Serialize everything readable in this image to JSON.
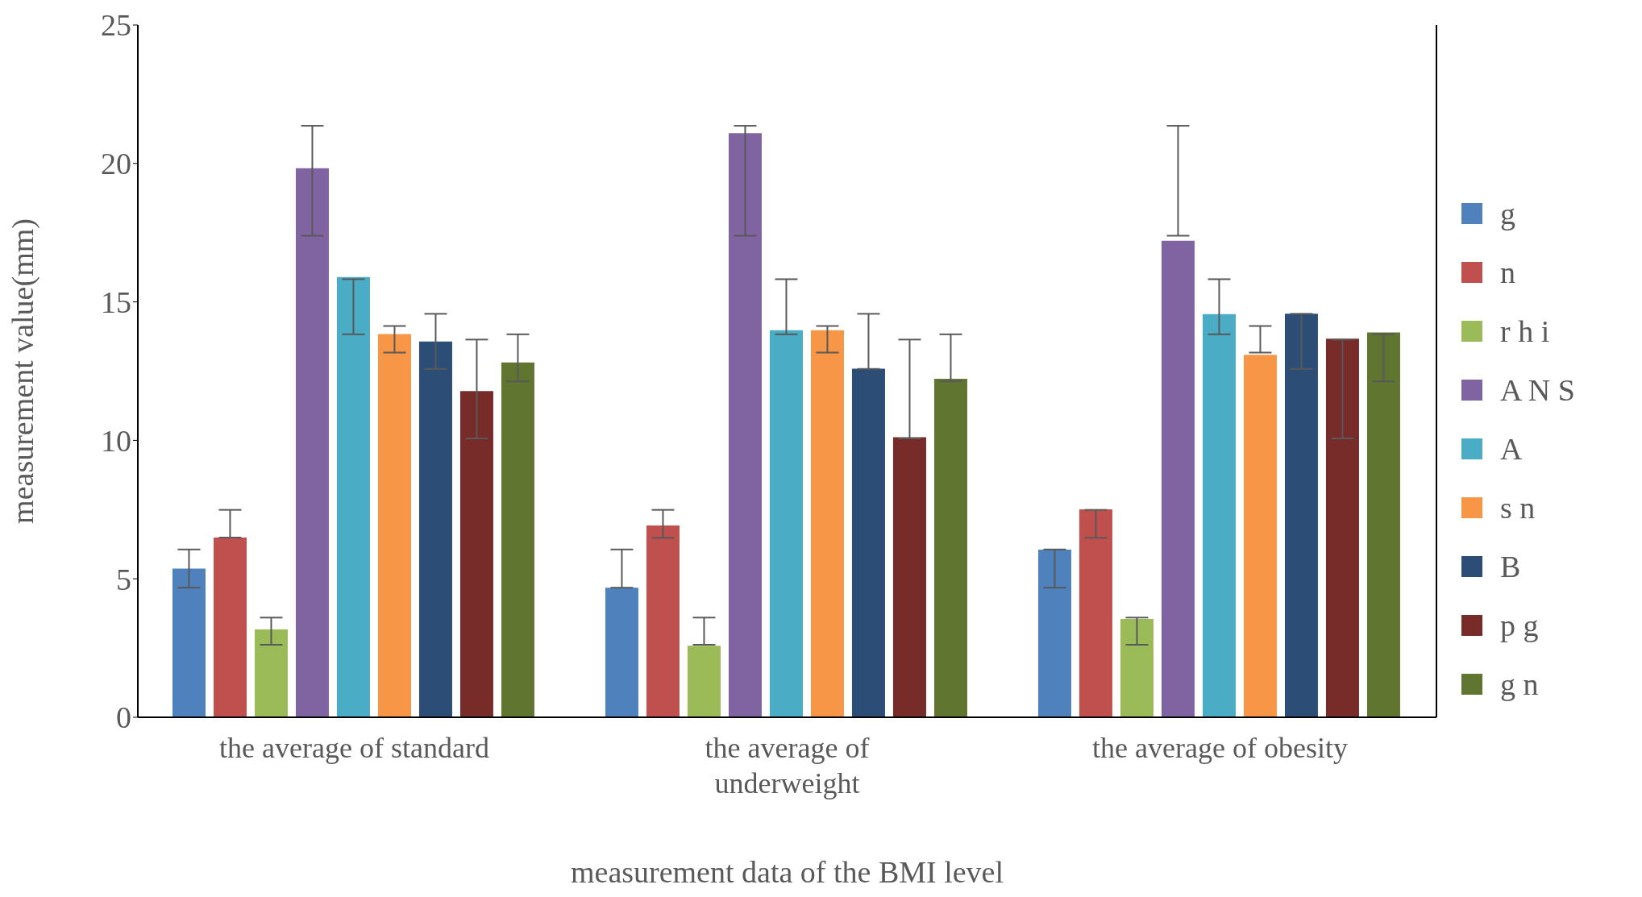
{
  "chart_data": {
    "type": "bar",
    "xlabel": "measurement data of the BMI level",
    "ylabel": "measurement value(mm)",
    "categories": [
      "the average of standard",
      "the average of underweight",
      "the average of obesity"
    ],
    "ylim": [
      0,
      25
    ],
    "yticks": [
      0,
      5,
      10,
      15,
      20,
      25
    ],
    "grid": false,
    "legend": "right",
    "series": [
      {
        "name": "g",
        "color": "#4f81bd",
        "values": [
          5.37,
          4.68,
          6.05
        ],
        "errors": [
          [
            4.68,
            6.06
          ],
          [
            4.68,
            6.06
          ],
          [
            4.68,
            6.06
          ]
        ]
      },
      {
        "name": "n",
        "color": "#c0504d",
        "values": [
          6.49,
          6.93,
          7.51
        ],
        "errors": [
          [
            6.49,
            7.49
          ],
          [
            6.48,
            7.49
          ],
          [
            6.48,
            7.49
          ]
        ]
      },
      {
        "name": "r h i",
        "color": "#9bbb59",
        "values": [
          3.17,
          2.58,
          3.55
        ],
        "errors": [
          [
            2.62,
            3.6
          ],
          [
            2.62,
            3.6
          ],
          [
            2.62,
            3.6
          ]
        ]
      },
      {
        "name": "A N S",
        "color": "#8064a2",
        "values": [
          19.83,
          21.09,
          17.21
        ],
        "errors": [
          [
            17.39,
            21.36
          ],
          [
            17.39,
            21.36
          ],
          [
            17.39,
            21.36
          ]
        ]
      },
      {
        "name": "A",
        "color": "#4bacc6",
        "values": [
          15.9,
          13.98,
          14.56
        ],
        "errors": [
          [
            13.83,
            15.82
          ],
          [
            13.83,
            15.82
          ],
          [
            13.83,
            15.82
          ]
        ]
      },
      {
        "name": "s n",
        "color": "#f79646",
        "values": [
          13.84,
          13.98,
          13.09
        ],
        "errors": [
          [
            13.17,
            14.13
          ],
          [
            13.17,
            14.13
          ],
          [
            13.17,
            14.13
          ]
        ]
      },
      {
        "name": "B",
        "color": "#2c4d75",
        "values": [
          13.57,
          12.59,
          14.57
        ],
        "errors": [
          [
            12.58,
            14.57
          ],
          [
            12.58,
            14.57
          ],
          [
            12.58,
            14.57
          ]
        ]
      },
      {
        "name": "p g",
        "color": "#772c2a",
        "values": [
          11.78,
          10.11,
          13.67
        ],
        "errors": [
          [
            10.07,
            13.64
          ],
          [
            10.07,
            13.64
          ],
          [
            10.07,
            13.64
          ]
        ]
      },
      {
        "name": "g n",
        "color": "#5f7530",
        "values": [
          12.81,
          12.22,
          13.9
        ],
        "errors": [
          [
            12.13,
            13.83
          ],
          [
            12.13,
            13.83
          ],
          [
            12.13,
            13.83
          ]
        ]
      }
    ]
  }
}
